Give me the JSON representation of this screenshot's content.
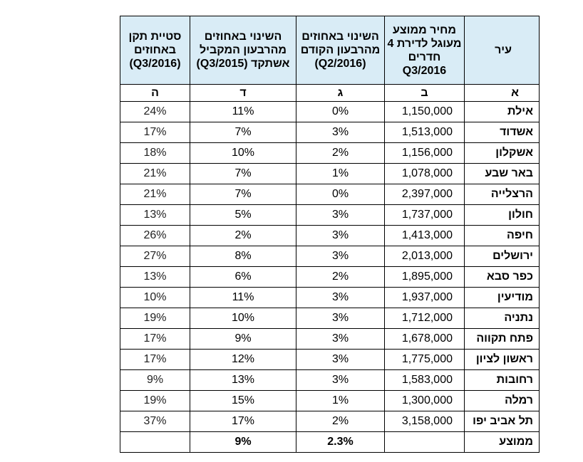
{
  "headers": {
    "city": "עיר",
    "price": "מחיר ממוצע מעוגל לדירת 4 חדרים Q3/2016",
    "change_prev_q": "השינוי באחוזים מהרבעון הקודם (Q2/2016)",
    "change_parallel_q": "השינוי באחוזים מהרבעון המקביל אשתקד (Q3/2015)",
    "std_dev": "סטיית תקן באחוזים (Q3/2016)"
  },
  "letters": [
    "א",
    "ב",
    "ג",
    "ד",
    "ה"
  ],
  "rows": [
    {
      "city": "אילת",
      "price": "1,150,000",
      "change_prev": "0%",
      "change_parallel": "11%",
      "std": "24%"
    },
    {
      "city": "אשדוד",
      "price": "1,513,000",
      "change_prev": "3%",
      "change_parallel": "7%",
      "std": "17%"
    },
    {
      "city": "אשקלון",
      "price": "1,156,000",
      "change_prev": "2%",
      "change_parallel": "10%",
      "std": "18%"
    },
    {
      "city": "באר שבע",
      "price": "1,078,000",
      "change_prev": "1%",
      "change_parallel": "7%",
      "std": "21%"
    },
    {
      "city": "הרצלייה",
      "price": "2,397,000",
      "change_prev": "0%",
      "change_parallel": "7%",
      "std": "21%"
    },
    {
      "city": "חולון",
      "price": "1,737,000",
      "change_prev": "3%",
      "change_parallel": "5%",
      "std": "13%"
    },
    {
      "city": "חיפה",
      "price": "1,413,000",
      "change_prev": "3%",
      "change_parallel": "2%",
      "std": "26%"
    },
    {
      "city": "ירושלים",
      "price": "2,013,000",
      "change_prev": "3%",
      "change_parallel": "8%",
      "std": "27%"
    },
    {
      "city": "כפר סבא",
      "price": "1,895,000",
      "change_prev": "2%",
      "change_parallel": "6%",
      "std": "13%"
    },
    {
      "city": "מודיעין",
      "price": "1,937,000",
      "change_prev": "3%",
      "change_parallel": "11%",
      "std": "10%"
    },
    {
      "city": "נתניה",
      "price": "1,712,000",
      "change_prev": "3%",
      "change_parallel": "10%",
      "std": "19%"
    },
    {
      "city": "פתח תקווה",
      "price": "1,678,000",
      "change_prev": "3%",
      "change_parallel": "9%",
      "std": "17%"
    },
    {
      "city": "ראשון לציון",
      "price": "1,775,000",
      "change_prev": "3%",
      "change_parallel": "12%",
      "std": "17%"
    },
    {
      "city": "רחובות",
      "price": "1,583,000",
      "change_prev": "3%",
      "change_parallel": "13%",
      "std": "9%"
    },
    {
      "city": "רמלה",
      "price": "1,300,000",
      "change_prev": "1%",
      "change_parallel": "15%",
      "std": "19%"
    },
    {
      "city": "תל אביב יפו",
      "price": "3,158,000",
      "change_prev": "2%",
      "change_parallel": "17%",
      "std": "37%"
    }
  ],
  "average": {
    "label": "ממוצע",
    "price": "",
    "change_prev": "2.3%",
    "change_parallel": "9%",
    "std": ""
  },
  "colors": {
    "header_bg": "#d9ecf6",
    "border": "#000000"
  }
}
